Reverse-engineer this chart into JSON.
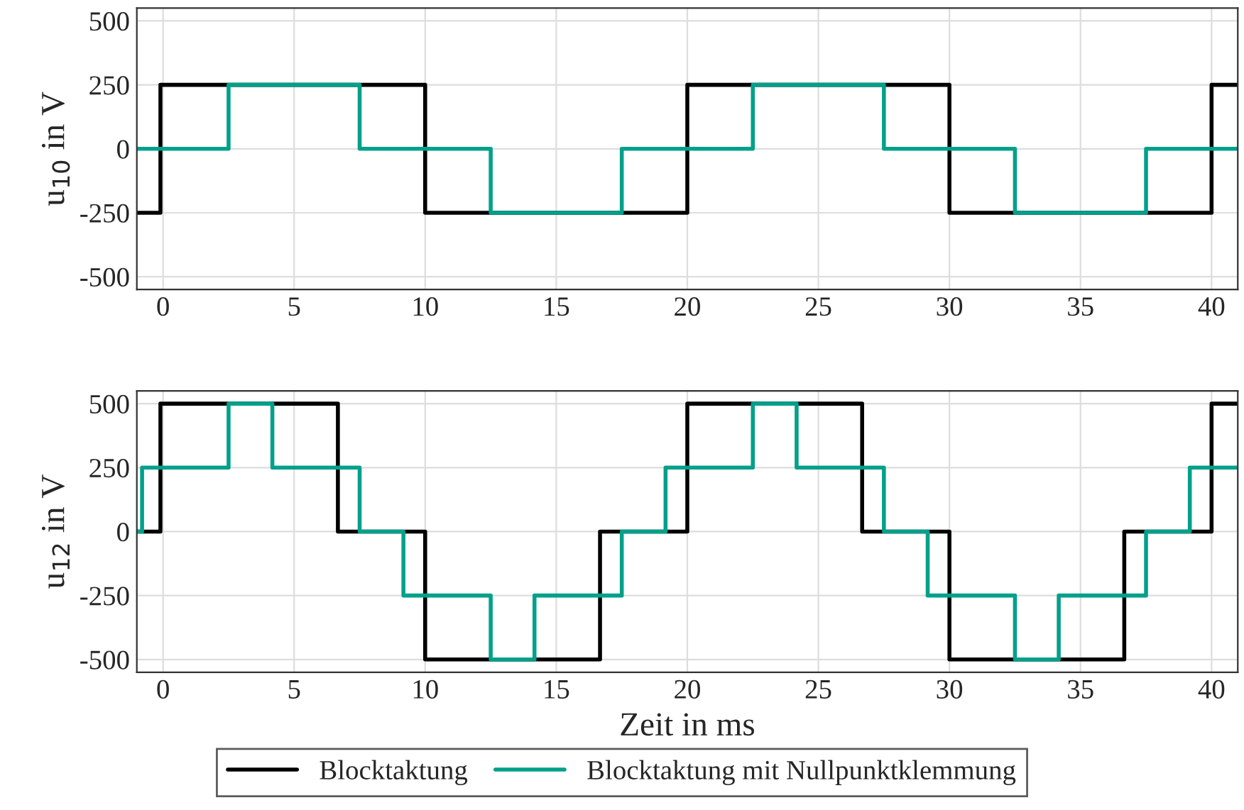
{
  "chart_data": [
    {
      "type": "step",
      "ylabel": "u$_{10}$ in V",
      "xlim": [
        -1,
        41
      ],
      "xticks": [
        0,
        5,
        10,
        15,
        20,
        25,
        30,
        35,
        40
      ],
      "ylim": [
        -550,
        550
      ],
      "yticks": [
        -500,
        -250,
        0,
        250,
        500
      ],
      "grid": true,
      "legend": false,
      "series": [
        {
          "color": "#000000",
          "x": [
            -1,
            -0.1,
            10,
            20,
            30,
            40,
            41
          ],
          "values": [
            -250,
            250,
            -250,
            250,
            -250,
            250,
            250
          ]
        },
        {
          "color": "#00a08a",
          "x": [
            -1,
            2.5,
            7.5,
            12.5,
            17.5,
            22.5,
            27.5,
            32.5,
            37.5,
            41
          ],
          "values": [
            0,
            250,
            0,
            -250,
            0,
            250,
            0,
            -250,
            0,
            0
          ]
        }
      ]
    },
    {
      "type": "step",
      "ylabel": "u$_{12}$ in V",
      "xlabel": "Zeit in ms",
      "xlim": [
        -1,
        41
      ],
      "xticks": [
        0,
        5,
        10,
        15,
        20,
        25,
        30,
        35,
        40
      ],
      "ylim": [
        -550,
        550
      ],
      "yticks": [
        -500,
        -250,
        0,
        250,
        500
      ],
      "grid": true,
      "legend": "bottom",
      "series": [
        {
          "name": "Blocktaktung",
          "color": "#000000",
          "x": [
            -1,
            -0.1,
            6.67,
            10,
            16.67,
            20,
            26.67,
            30,
            36.67,
            40,
            41
          ],
          "values": [
            0,
            500,
            0,
            -500,
            0,
            500,
            0,
            -500,
            0,
            500,
            500
          ]
        },
        {
          "name": "Blocktaktung mit Nullpunktklemmung",
          "color": "#00a08a",
          "x": [
            -1,
            -0.8,
            2.5,
            4.17,
            7.5,
            9.17,
            12.5,
            14.17,
            17.5,
            19.17,
            22.5,
            24.17,
            27.5,
            29.17,
            32.5,
            34.17,
            37.5,
            39.17,
            41
          ],
          "values": [
            0,
            250,
            500,
            250,
            0,
            -250,
            -500,
            -250,
            0,
            250,
            500,
            250,
            0,
            -250,
            -500,
            -250,
            0,
            250,
            250
          ]
        }
      ]
    }
  ]
}
